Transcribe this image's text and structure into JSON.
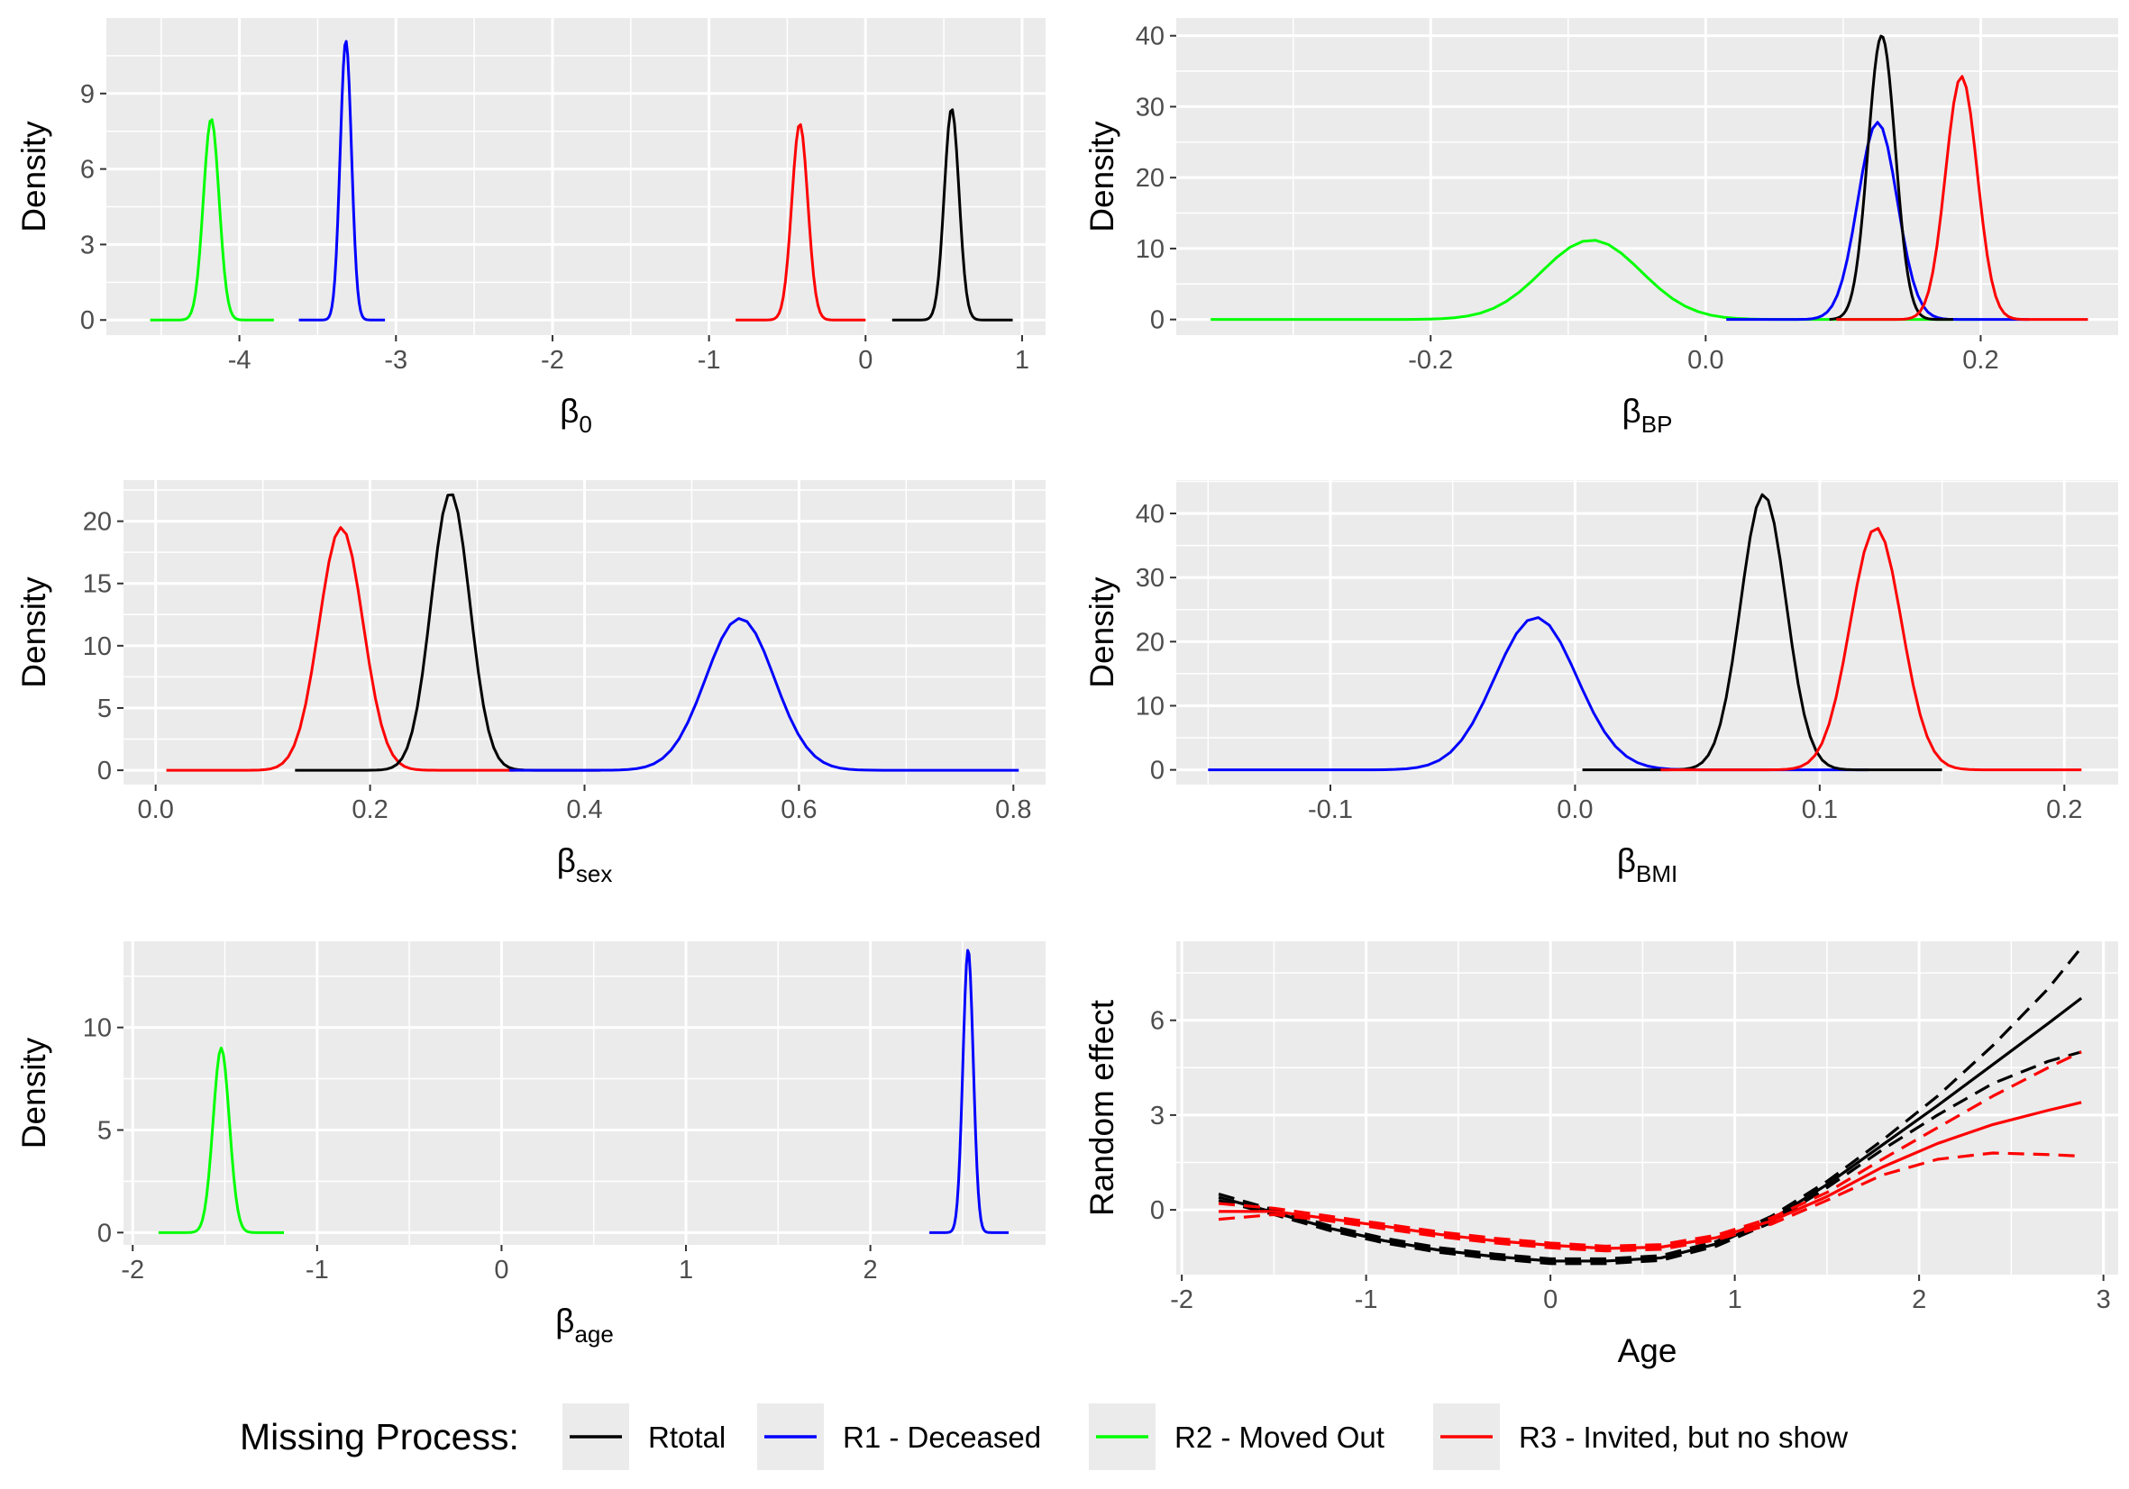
{
  "legend": {
    "title": "Missing Process:",
    "placement": "bottom",
    "entries": [
      {
        "label": "Rtotal",
        "color": "#000000"
      },
      {
        "label": "R1 - Deceased",
        "color": "#0000ff"
      },
      {
        "label": "R2 - Moved Out",
        "color": "#00ff00"
      },
      {
        "label": "R3 - Invited, but no show",
        "color": "#ff0000"
      }
    ]
  },
  "chart_data": [
    {
      "type": "line",
      "xlabel_main": "β",
      "xlabel_sub": "0",
      "ylabel": "Density",
      "xlim": [
        -4.85,
        1.15
      ],
      "ylim": [
        -0.6,
        12.0
      ],
      "xticks": [
        {
          "v": -4,
          "t": "-4"
        },
        {
          "v": -3,
          "t": "-3"
        },
        {
          "v": -2,
          "t": "-2"
        },
        {
          "v": -1,
          "t": "-1"
        },
        {
          "v": 0,
          "t": "0"
        },
        {
          "v": 1,
          "t": "1"
        }
      ],
      "yticks": [
        {
          "v": 0,
          "t": "0"
        },
        {
          "v": 3,
          "t": "3"
        },
        {
          "v": 6,
          "t": "6"
        },
        {
          "v": 9,
          "t": "9"
        }
      ],
      "series": [
        {
          "color": "#00ff00",
          "kind": "density",
          "mu": -4.18,
          "sigma": 0.05,
          "peak": 8.0,
          "range": [
            -4.57,
            -3.78
          ]
        },
        {
          "color": "#0000ff",
          "kind": "density",
          "mu": -3.32,
          "sigma": 0.036,
          "peak": 11.1,
          "range": [
            -3.62,
            -3.07
          ]
        },
        {
          "color": "#ff0000",
          "kind": "density",
          "mu": -0.42,
          "sigma": 0.051,
          "peak": 7.8,
          "range": [
            -0.83,
            0.0
          ]
        },
        {
          "color": "#000000",
          "kind": "density",
          "mu": 0.55,
          "sigma": 0.047,
          "peak": 8.4,
          "range": [
            0.17,
            0.94
          ]
        }
      ]
    },
    {
      "type": "line",
      "xlabel_main": "β",
      "xlabel_sub": "BP",
      "ylabel": "Density",
      "xlim": [
        -0.385,
        0.3
      ],
      "ylim": [
        -2.2,
        42.5
      ],
      "xticks": [
        {
          "v": -0.2,
          "t": "-0.2"
        },
        {
          "v": 0.0,
          "t": "0.0"
        },
        {
          "v": 0.2,
          "t": "0.2"
        }
      ],
      "yticks": [
        {
          "v": 0,
          "t": "0"
        },
        {
          "v": 10,
          "t": "10"
        },
        {
          "v": 20,
          "t": "20"
        },
        {
          "v": 30,
          "t": "30"
        },
        {
          "v": 40,
          "t": "40"
        }
      ],
      "series": [
        {
          "color": "#00ff00",
          "kind": "density",
          "mu": -0.083,
          "sigma": 0.036,
          "peak": 11.2,
          "range": [
            -0.36,
            0.2
          ]
        },
        {
          "color": "#0000ff",
          "kind": "density",
          "mu": 0.125,
          "sigma": 0.0143,
          "peak": 27.8,
          "range": [
            0.015,
            0.235
          ]
        },
        {
          "color": "#000000",
          "kind": "density",
          "mu": 0.128,
          "sigma": 0.0099,
          "peak": 40.0,
          "range": [
            0.09,
            0.18
          ]
        },
        {
          "color": "#ff0000",
          "kind": "density",
          "mu": 0.186,
          "sigma": 0.0115,
          "peak": 34.3,
          "range": [
            0.095,
            0.278
          ]
        }
      ]
    },
    {
      "type": "line",
      "xlabel_main": "β",
      "xlabel_sub": "sex",
      "ylabel": "Density",
      "xlim": [
        -0.03,
        0.83
      ],
      "ylim": [
        -1.15,
        23.3
      ],
      "xticks": [
        {
          "v": 0.0,
          "t": "0.0"
        },
        {
          "v": 0.2,
          "t": "0.2"
        },
        {
          "v": 0.4,
          "t": "0.4"
        },
        {
          "v": 0.6,
          "t": "0.6"
        },
        {
          "v": 0.8,
          "t": "0.8"
        }
      ],
      "yticks": [
        {
          "v": 0,
          "t": "0"
        },
        {
          "v": 5,
          "t": "5"
        },
        {
          "v": 10,
          "t": "10"
        },
        {
          "v": 15,
          "t": "15"
        },
        {
          "v": 20,
          "t": "20"
        }
      ],
      "series": [
        {
          "color": "#ff0000",
          "kind": "density",
          "mu": 0.173,
          "sigma": 0.0205,
          "peak": 19.5,
          "range": [
            0.01,
            0.335
          ]
        },
        {
          "color": "#000000",
          "kind": "density",
          "mu": 0.275,
          "sigma": 0.018,
          "peak": 22.3,
          "range": [
            0.13,
            0.415
          ]
        },
        {
          "color": "#0000ff",
          "kind": "density",
          "mu": 0.545,
          "sigma": 0.032,
          "peak": 12.2,
          "range": [
            0.33,
            0.805
          ]
        }
      ]
    },
    {
      "type": "line",
      "xlabel_main": "β",
      "xlabel_sub": "BMI",
      "ylabel": "Density",
      "xlim": [
        -0.163,
        0.222
      ],
      "ylim": [
        -2.3,
        45.2
      ],
      "xticks": [
        {
          "v": -0.1,
          "t": "-0.1"
        },
        {
          "v": 0.0,
          "t": "0.0"
        },
        {
          "v": 0.1,
          "t": "0.1"
        },
        {
          "v": 0.2,
          "t": "0.2"
        }
      ],
      "yticks": [
        {
          "v": 0,
          "t": "0"
        },
        {
          "v": 10,
          "t": "10"
        },
        {
          "v": 20,
          "t": "20"
        },
        {
          "v": 30,
          "t": "30"
        },
        {
          "v": 40,
          "t": "40"
        }
      ],
      "series": [
        {
          "color": "#0000ff",
          "kind": "density",
          "mu": -0.016,
          "sigma": 0.0168,
          "peak": 23.8,
          "range": [
            -0.15,
            0.12
          ]
        },
        {
          "color": "#000000",
          "kind": "density",
          "mu": 0.077,
          "sigma": 0.0093,
          "peak": 43.0,
          "range": [
            0.003,
            0.15
          ]
        },
        {
          "color": "#ff0000",
          "kind": "density",
          "mu": 0.123,
          "sigma": 0.0105,
          "peak": 37.8,
          "range": [
            0.035,
            0.207
          ]
        }
      ]
    },
    {
      "type": "line",
      "xlabel_main": "β",
      "xlabel_sub": "age",
      "ylabel": "Density",
      "xlim": [
        -2.05,
        2.95
      ],
      "ylim": [
        -0.6,
        14.2
      ],
      "xticks": [
        {
          "v": -2,
          "t": "-2"
        },
        {
          "v": -1,
          "t": "-1"
        },
        {
          "v": 0,
          "t": "0"
        },
        {
          "v": 1,
          "t": "1"
        },
        {
          "v": 2,
          "t": "2"
        }
      ],
      "yticks": [
        {
          "v": 0,
          "t": "0"
        },
        {
          "v": 5,
          "t": "5"
        },
        {
          "v": 10,
          "t": "10"
        }
      ],
      "series": [
        {
          "color": "#00ff00",
          "kind": "density",
          "mu": -1.52,
          "sigma": 0.044,
          "peak": 9.0,
          "range": [
            -1.86,
            -1.18
          ]
        },
        {
          "color": "#0000ff",
          "kind": "density",
          "mu": 2.53,
          "sigma": 0.028,
          "peak": 13.8,
          "range": [
            2.32,
            2.75
          ]
        }
      ]
    },
    {
      "type": "line",
      "xlabel_main": "Age",
      "xlabel_sub": "",
      "ylabel": "Random effect",
      "xlim": [
        -2.03,
        3.08
      ],
      "ylim": [
        -2.05,
        8.5
      ],
      "xticks": [
        {
          "v": -2,
          "t": "-2"
        },
        {
          "v": -1,
          "t": "-1"
        },
        {
          "v": 0,
          "t": "0"
        },
        {
          "v": 1,
          "t": "1"
        },
        {
          "v": 2,
          "t": "2"
        },
        {
          "v": 3,
          "t": "3"
        }
      ],
      "yticks": [
        {
          "v": 0,
          "t": "0"
        },
        {
          "v": 3,
          "t": "3"
        },
        {
          "v": 6,
          "t": "6"
        }
      ],
      "series": [
        {
          "color": "#000000",
          "kind": "curve",
          "dash": "dash",
          "x": [
            -1.8,
            -1.5,
            -1.2,
            -0.9,
            -0.6,
            -0.3,
            0.0,
            0.3,
            0.6,
            0.9,
            1.2,
            1.5,
            1.8,
            2.1,
            2.4,
            2.7,
            2.88
          ],
          "y": [
            0.5,
            0.0,
            -0.5,
            -0.9,
            -1.2,
            -1.4,
            -1.55,
            -1.55,
            -1.45,
            -1.0,
            -0.2,
            0.9,
            2.2,
            3.6,
            5.2,
            7.0,
            8.3
          ]
        },
        {
          "color": "#000000",
          "kind": "curve",
          "dash": "dash",
          "x": [
            -1.8,
            -1.5,
            -1.2,
            -0.9,
            -0.6,
            -0.3,
            0.0,
            0.3,
            0.6,
            0.9,
            1.2,
            1.5,
            1.8,
            2.1,
            2.4,
            2.7,
            2.88
          ],
          "y": [
            0.3,
            -0.15,
            -0.65,
            -1.05,
            -1.35,
            -1.55,
            -1.7,
            -1.7,
            -1.6,
            -1.15,
            -0.4,
            0.7,
            1.9,
            3.0,
            4.0,
            4.7,
            5.0
          ]
        },
        {
          "color": "#000000",
          "kind": "curve",
          "dash": "solid",
          "x": [
            -1.8,
            -1.5,
            -1.2,
            -0.9,
            -0.6,
            -0.3,
            0.0,
            0.3,
            0.6,
            0.9,
            1.2,
            1.5,
            1.8,
            2.1,
            2.4,
            2.7,
            2.88
          ],
          "y": [
            0.4,
            -0.08,
            -0.58,
            -0.98,
            -1.28,
            -1.48,
            -1.62,
            -1.62,
            -1.52,
            -1.08,
            -0.3,
            0.8,
            2.05,
            3.3,
            4.6,
            5.9,
            6.7
          ]
        },
        {
          "color": "#ff0000",
          "kind": "curve",
          "dash": "dash",
          "x": [
            -1.8,
            -1.5,
            -1.2,
            -0.9,
            -0.6,
            -0.3,
            0.0,
            0.3,
            0.6,
            0.9,
            1.2,
            1.5,
            1.8,
            2.1,
            2.4,
            2.7,
            2.88
          ],
          "y": [
            0.2,
            0.05,
            -0.2,
            -0.45,
            -0.7,
            -0.9,
            -1.05,
            -1.15,
            -1.1,
            -0.8,
            -0.25,
            0.55,
            1.6,
            2.6,
            3.6,
            4.5,
            5.0
          ]
        },
        {
          "color": "#ff0000",
          "kind": "curve",
          "dash": "dash",
          "x": [
            -1.8,
            -1.5,
            -1.2,
            -0.9,
            -0.6,
            -0.3,
            0.0,
            0.3,
            0.6,
            0.9,
            1.2,
            1.5,
            1.8,
            2.1,
            2.4,
            2.7,
            2.88
          ],
          "y": [
            -0.3,
            -0.15,
            -0.35,
            -0.6,
            -0.85,
            -1.05,
            -1.2,
            -1.3,
            -1.25,
            -0.95,
            -0.45,
            0.3,
            1.1,
            1.6,
            1.8,
            1.75,
            1.7
          ]
        },
        {
          "color": "#ff0000",
          "kind": "curve",
          "dash": "solid",
          "x": [
            -1.8,
            -1.5,
            -1.2,
            -0.9,
            -0.6,
            -0.3,
            0.0,
            0.3,
            0.6,
            0.9,
            1.2,
            1.5,
            1.8,
            2.1,
            2.4,
            2.7,
            2.88
          ],
          "y": [
            -0.05,
            -0.05,
            -0.28,
            -0.52,
            -0.78,
            -0.98,
            -1.12,
            -1.22,
            -1.18,
            -0.88,
            -0.35,
            0.42,
            1.35,
            2.1,
            2.7,
            3.15,
            3.4
          ]
        }
      ]
    }
  ]
}
